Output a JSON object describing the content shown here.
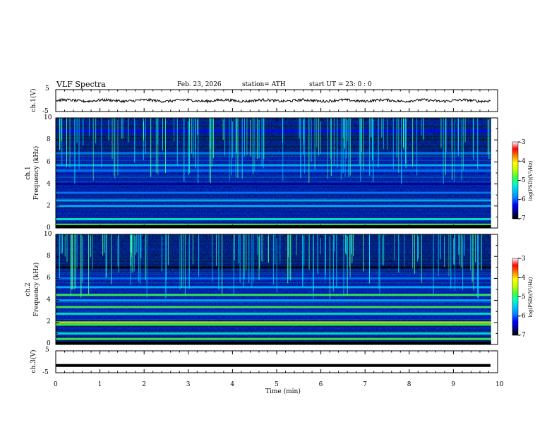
{
  "header": {
    "title": "VLF  Spectra",
    "date": "Feb. 23, 2026",
    "station": "station= ATH",
    "start": "start  UT  =    23: 0  : 0"
  },
  "panels": {
    "ch1_waveform": {
      "ylabel": "ch.1(V)",
      "yticks": [
        "5",
        "-5"
      ]
    },
    "ch1_spec": {
      "ylabel_line1": "ch.1",
      "ylabel_line2": "Frequency  (kHz)",
      "yticks": [
        "10",
        "8",
        "6",
        "4",
        "2",
        "0"
      ]
    },
    "ch2_spec": {
      "ylabel_line1": "ch.2",
      "ylabel_line2": "Frequency  (kHz)",
      "yticks": [
        "10",
        "8",
        "6",
        "4",
        "2",
        "0"
      ]
    },
    "ch3_waveform": {
      "ylabel": "ch.3(V)",
      "yticks": [
        "5",
        "-5"
      ]
    }
  },
  "colorbar": {
    "label": "log(PSD)(V²/Hz)",
    "ticks": [
      "-3",
      "-4",
      "-5",
      "-6",
      "-7"
    ],
    "colors": [
      "#000000",
      "#00008b",
      "#0000ff",
      "#0080ff",
      "#00c0ff",
      "#00ffc0",
      "#40ff40",
      "#c0ff00",
      "#ffff00",
      "#ff8000",
      "#ff0000",
      "#ffffff"
    ]
  },
  "xaxis": {
    "label": "Time  (min)",
    "ticks": [
      "0",
      "1",
      "2",
      "3",
      "4",
      "5",
      "6",
      "7",
      "8",
      "9",
      "10"
    ]
  },
  "chart_data": [
    {
      "type": "line",
      "name": "ch.1 waveform",
      "ylabel": "ch.1(V)",
      "xlim": [
        0,
        10
      ],
      "ylim": [
        -5,
        5
      ],
      "x_end_data": 9.85,
      "approx_level": 0,
      "approx_amplitude": 1
    },
    {
      "type": "heatmap",
      "ylabel": "ch.1  Frequency (kHz)",
      "xlim": [
        0,
        10
      ],
      "ylim": [
        0,
        10
      ],
      "x_end_data": 9.85,
      "color_range_logPSD": [
        -7,
        -3
      ],
      "bands_kHz": [
        {
          "f": 0.3,
          "level": -4.5
        },
        {
          "f": 0.8,
          "level": -5
        },
        {
          "f": 2.0,
          "level": -5.4
        },
        {
          "f": 2.5,
          "level": -5.5
        },
        {
          "f": 3.2,
          "level": -5.8
        },
        {
          "f": 4.0,
          "level": -6.3
        },
        {
          "f": 5.2,
          "level": -5.6
        },
        {
          "f": 5.7,
          "level": -5.4
        },
        {
          "f": 6.8,
          "level": -5.6
        },
        {
          "f": 8.8,
          "level": -6.0
        }
      ]
    },
    {
      "type": "heatmap",
      "ylabel": "ch.2  Frequency (kHz)",
      "xlim": [
        0,
        10
      ],
      "ylim": [
        0,
        10
      ],
      "x_end_data": 9.85,
      "color_range_logPSD": [
        -7,
        -3
      ],
      "bands_kHz": [
        {
          "f": 0.5,
          "level": -4.8
        },
        {
          "f": 1.0,
          "level": -5
        },
        {
          "f": 1.8,
          "level": -4.6
        },
        {
          "f": 2.0,
          "level": -4.2
        },
        {
          "f": 2.8,
          "level": -5
        },
        {
          "f": 3.4,
          "level": -4.8
        },
        {
          "f": 4.0,
          "level": -5.3
        },
        {
          "f": 4.5,
          "level": -4.7
        },
        {
          "f": 5.2,
          "level": -5.2
        },
        {
          "f": 6.0,
          "level": -5.8
        },
        {
          "f": 7.0,
          "level": -6.8
        }
      ]
    },
    {
      "type": "line",
      "name": "ch.3 waveform",
      "ylabel": "ch.3(V)",
      "xlim": [
        0,
        10
      ],
      "ylim": [
        -5,
        5
      ],
      "x_end_data": 9.85,
      "approx_level": -1.7,
      "approx_amplitude": 0.1
    }
  ]
}
